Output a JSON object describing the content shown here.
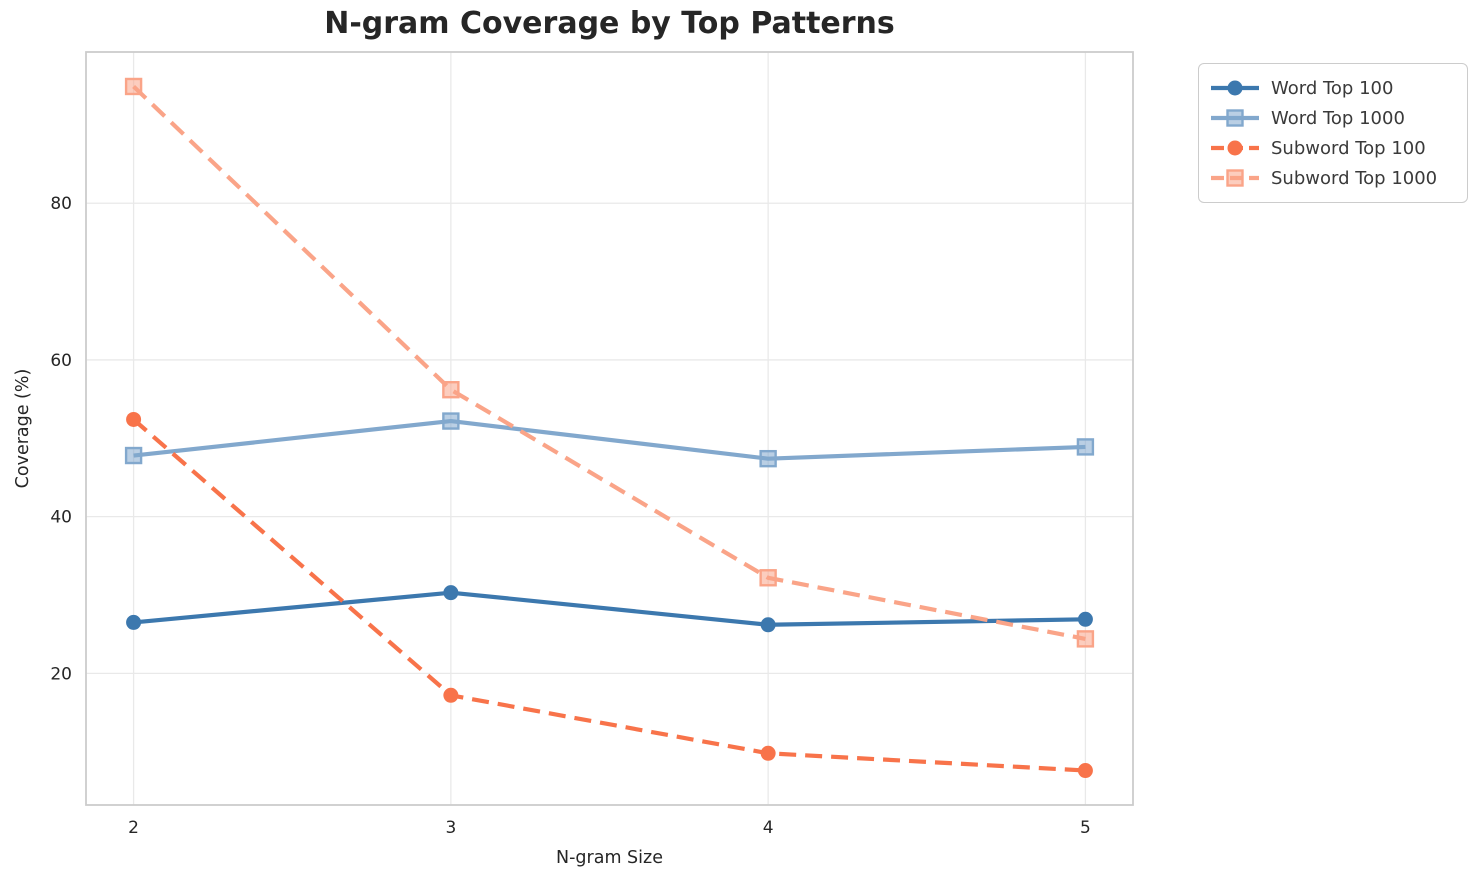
{
  "chart_data": {
    "type": "line",
    "title": "N-gram Coverage by Top Patterns",
    "xlabel": "N-gram Size",
    "ylabel": "Coverage (%)",
    "x": [
      2,
      3,
      4,
      5
    ],
    "xticks": [
      "2",
      "3",
      "4",
      "5"
    ],
    "yticks": [
      "20",
      "40",
      "60",
      "80"
    ],
    "ytick_values": [
      20,
      40,
      60,
      80
    ],
    "xlim": [
      1.85,
      5.15
    ],
    "ylim": [
      3.2,
      99.3
    ],
    "grid": true,
    "legend_position": "outside-top-right",
    "background_color": "#ffffff",
    "grid_color": "#e9e9e9",
    "spine_color": "#cccccc",
    "text_color": "#262626",
    "series": [
      {
        "name": "Word Top 100",
        "values": [
          26.5,
          30.3,
          26.2,
          26.9
        ],
        "color": "#3C78AE",
        "marker": "circle",
        "dashed": false
      },
      {
        "name": "Word Top 1000",
        "values": [
          47.8,
          52.2,
          47.4,
          48.9
        ],
        "color": "#82A8CD",
        "marker": "square",
        "dashed": false
      },
      {
        "name": "Subword Top 100",
        "values": [
          52.4,
          17.2,
          9.8,
          7.6
        ],
        "color": "#F8734A",
        "marker": "circle",
        "dashed": true
      },
      {
        "name": "Subword Top 1000",
        "values": [
          94.9,
          56.2,
          32.2,
          24.4
        ],
        "color": "#FAA488",
        "marker": "square",
        "dashed": true
      }
    ]
  }
}
